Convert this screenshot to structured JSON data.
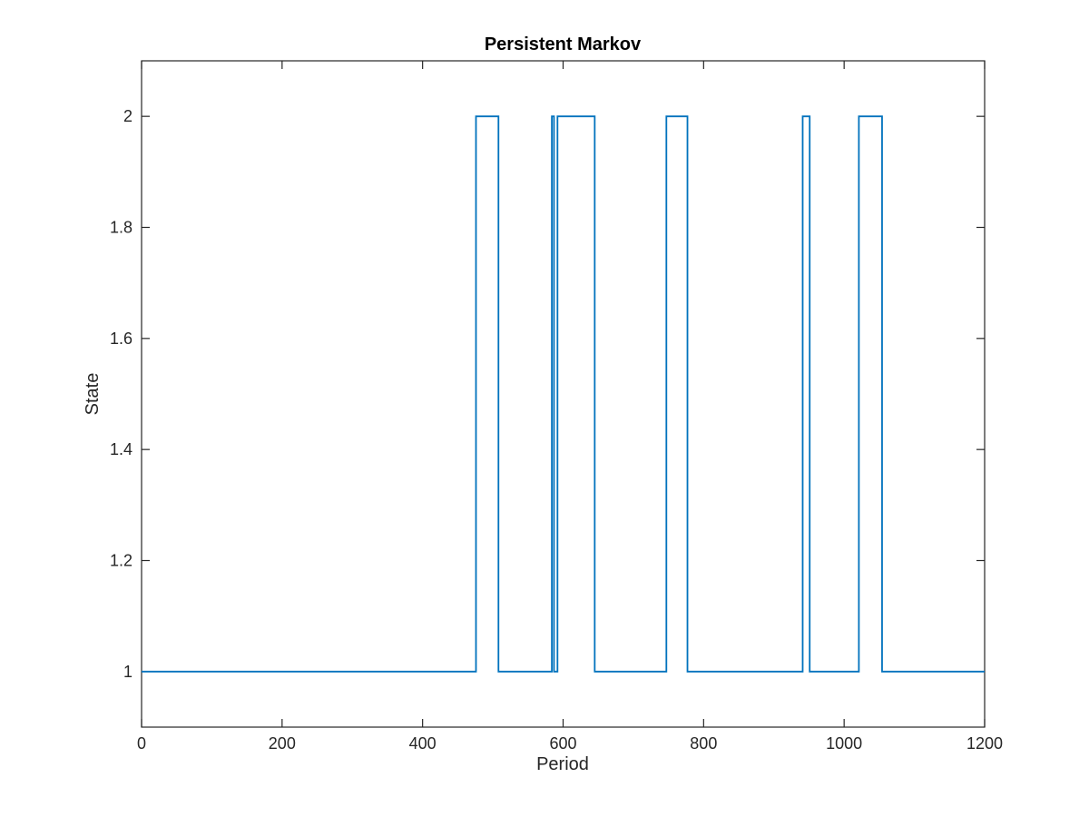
{
  "chart_data": {
    "type": "line",
    "title": "Persistent Markov",
    "xlabel": "Period",
    "ylabel": "State",
    "xlim": [
      0,
      1200
    ],
    "ylim": [
      0.9,
      2.1
    ],
    "x_ticks": [
      0,
      200,
      400,
      600,
      800,
      1000,
      1200
    ],
    "x_tick_labels": [
      "0",
      "200",
      "400",
      "600",
      "800",
      "1000",
      "1200"
    ],
    "y_ticks": [
      1,
      1.2,
      1.4,
      1.6,
      1.8,
      2
    ],
    "y_tick_labels": [
      "1",
      "1.2",
      "1.4",
      "1.6",
      "1.8",
      "2"
    ],
    "grid": false,
    "line_style": "step",
    "color": "#0072bd",
    "series": [
      {
        "x": [
          0,
          476,
          476,
          508,
          508,
          584,
          584,
          587,
          587,
          592,
          592,
          645,
          645,
          747,
          747,
          777,
          777,
          941,
          941,
          951,
          951,
          1021,
          1021,
          1054,
          1054,
          1200
        ],
        "y": [
          1,
          1,
          2,
          2,
          1,
          1,
          2,
          2,
          1,
          1,
          2,
          2,
          1,
          1,
          2,
          2,
          1,
          1,
          2,
          2,
          1,
          1,
          2,
          2,
          1,
          1
        ]
      }
    ]
  }
}
